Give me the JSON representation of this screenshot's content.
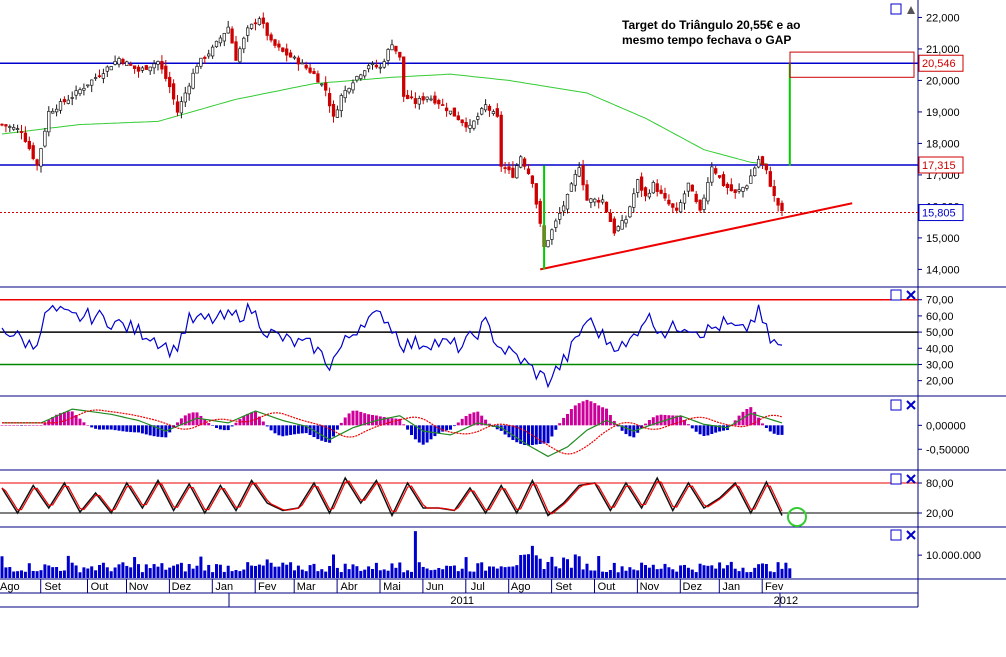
{
  "annotation": {
    "line1": "Target do Triângulo 20,55€ e ao",
    "line2": "mesmo tempo fechava o GAP"
  },
  "colors": {
    "price_up": "#1a1a1a",
    "price_down": "#cc0000",
    "sma": "#33cc33",
    "level_lines": "#0000cc",
    "trendline": "#ee0000",
    "target_line": "#00cc00",
    "rsi": "#0000cc",
    "volume": "#0000cc"
  },
  "chart_data": [
    {
      "type": "line",
      "panel": "price",
      "ylim": [
        13600,
        22300
      ],
      "yticks": [
        "22,000",
        "21,000",
        "20,000",
        "19,000",
        "18,000",
        "17,000",
        "16,000",
        "15,000",
        "14,000"
      ],
      "ytick_values": [
        22000,
        21000,
        20000,
        19000,
        18000,
        17000,
        16000,
        15000,
        14000
      ],
      "price_tags": [
        {
          "label": "20,546",
          "value": 20546
        },
        {
          "label": "17,315",
          "value": 17315
        },
        {
          "label": "15,805",
          "value": 15805
        }
      ],
      "anchors": [
        [
          0,
          18600
        ],
        [
          5,
          18400
        ],
        [
          9,
          17300
        ],
        [
          12,
          19000
        ],
        [
          18,
          19500
        ],
        [
          25,
          20200
        ],
        [
          30,
          20700
        ],
        [
          35,
          20300
        ],
        [
          40,
          20600
        ],
        [
          43,
          19800
        ],
        [
          45,
          19000
        ],
        [
          47,
          19600
        ],
        [
          50,
          20500
        ],
        [
          54,
          21000
        ],
        [
          58,
          21700
        ],
        [
          60,
          20700
        ],
        [
          63,
          21600
        ],
        [
          66,
          22000
        ],
        [
          69,
          21200
        ],
        [
          72,
          20900
        ],
        [
          76,
          20600
        ],
        [
          80,
          20200
        ],
        [
          83,
          19700
        ],
        [
          85,
          18800
        ],
        [
          87,
          19500
        ],
        [
          90,
          20000
        ],
        [
          94,
          20500
        ],
        [
          97,
          20400
        ],
        [
          100,
          21200
        ],
        [
          102,
          20700
        ],
        [
          103,
          19500
        ],
        [
          106,
          19300
        ],
        [
          109,
          19500
        ],
        [
          112,
          19300
        ],
        [
          116,
          18900
        ],
        [
          120,
          18500
        ],
        [
          124,
          19200
        ],
        [
          127,
          18800
        ],
        [
          128,
          17300
        ],
        [
          131,
          17000
        ],
        [
          133,
          17600
        ],
        [
          136,
          16800
        ],
        [
          139,
          14700
        ],
        [
          142,
          15500
        ],
        [
          145,
          16300
        ],
        [
          148,
          17300
        ],
        [
          150,
          16200
        ],
        [
          154,
          16200
        ],
        [
          157,
          15200
        ],
        [
          160,
          15600
        ],
        [
          163,
          16800
        ],
        [
          165,
          16300
        ],
        [
          167,
          16700
        ],
        [
          170,
          16200
        ],
        [
          173,
          15800
        ],
        [
          176,
          16700
        ],
        [
          179,
          15800
        ],
        [
          182,
          17300
        ],
        [
          185,
          16700
        ],
        [
          188,
          16400
        ],
        [
          191,
          16700
        ],
        [
          194,
          17500
        ],
        [
          196,
          17100
        ],
        [
          198,
          16300
        ],
        [
          200,
          15800
        ]
      ],
      "sma_anchors": [
        [
          0,
          18300
        ],
        [
          20,
          18600
        ],
        [
          40,
          18700
        ],
        [
          60,
          19400
        ],
        [
          80,
          19900
        ],
        [
          100,
          20100
        ],
        [
          115,
          20200
        ],
        [
          130,
          20000
        ],
        [
          150,
          19600
        ],
        [
          165,
          18800
        ],
        [
          180,
          17800
        ],
        [
          192,
          17400
        ],
        [
          196,
          17350
        ]
      ],
      "trendline": {
        "start": [
          138,
          14000
        ],
        "end": [
          218,
          16100
        ]
      },
      "gap_measure": {
        "index": 139,
        "from": 14000,
        "to": 17300
      },
      "target_measure": {
        "index": 202,
        "from": 17300,
        "to": 20550
      },
      "support_level": 15805
    },
    {
      "type": "line",
      "panel": "rsi",
      "ylim": [
        13,
        76
      ],
      "yticks": [
        "70,00",
        "60,00",
        "50,00",
        "40,00",
        "30,00",
        "20,00"
      ],
      "ytick_values": [
        70,
        60,
        50,
        40,
        30,
        20
      ],
      "levels": [
        70,
        50,
        30
      ],
      "anchors": [
        [
          0,
          53
        ],
        [
          8,
          41
        ],
        [
          12,
          64
        ],
        [
          18,
          59
        ],
        [
          24,
          60
        ],
        [
          30,
          55
        ],
        [
          38,
          48
        ],
        [
          44,
          38
        ],
        [
          48,
          57
        ],
        [
          55,
          58
        ],
        [
          60,
          60
        ],
        [
          64,
          64
        ],
        [
          68,
          50
        ],
        [
          74,
          44
        ],
        [
          80,
          41
        ],
        [
          84,
          30
        ],
        [
          88,
          44
        ],
        [
          93,
          58
        ],
        [
          98,
          60
        ],
        [
          103,
          42
        ],
        [
          110,
          44
        ],
        [
          118,
          41
        ],
        [
          124,
          55
        ],
        [
          128,
          40
        ],
        [
          132,
          35
        ],
        [
          137,
          25
        ],
        [
          140,
          20
        ],
        [
          145,
          35
        ],
        [
          150,
          58
        ],
        [
          155,
          45
        ],
        [
          160,
          40
        ],
        [
          165,
          60
        ],
        [
          170,
          50
        ],
        [
          175,
          55
        ],
        [
          180,
          50
        ],
        [
          185,
          55
        ],
        [
          190,
          50
        ],
        [
          194,
          62
        ],
        [
          197,
          45
        ],
        [
          200,
          40
        ]
      ]
    },
    {
      "type": "line",
      "panel": "macd",
      "ylim": [
        -0.85,
        0.55
      ],
      "yticks": [
        "0,00000",
        "-0,50000"
      ],
      "ytick_values": [
        0,
        -0.5
      ],
      "anchors": [
        [
          0,
          0.05
        ],
        [
          10,
          0.05
        ],
        [
          18,
          0.34
        ],
        [
          28,
          0.23
        ],
        [
          35,
          0.1
        ],
        [
          42,
          -0.12
        ],
        [
          50,
          0.15
        ],
        [
          58,
          0.05
        ],
        [
          65,
          0.3
        ],
        [
          72,
          0.1
        ],
        [
          78,
          -0.02
        ],
        [
          84,
          -0.3
        ],
        [
          90,
          -0.05
        ],
        [
          96,
          0.1
        ],
        [
          102,
          0.2
        ],
        [
          108,
          -0.12
        ],
        [
          115,
          -0.2
        ],
        [
          122,
          0.05
        ],
        [
          128,
          -0.05
        ],
        [
          135,
          -0.42
        ],
        [
          140,
          -0.65
        ],
        [
          145,
          -0.45
        ],
        [
          150,
          -0.1
        ],
        [
          155,
          0.1
        ],
        [
          162,
          -0.12
        ],
        [
          168,
          0.05
        ],
        [
          174,
          0.2
        ],
        [
          180,
          0.02
        ],
        [
          186,
          -0.05
        ],
        [
          192,
          0.25
        ],
        [
          200,
          0.05
        ]
      ]
    },
    {
      "type": "line",
      "panel": "stochastic",
      "ylim": [
        0,
        100
      ],
      "yticks": [
        "80,00",
        "20,00"
      ],
      "ytick_values": [
        80,
        20
      ],
      "levels": [
        80,
        20
      ],
      "anchors": [
        [
          0,
          70
        ],
        [
          4,
          20
        ],
        [
          8,
          75
        ],
        [
          12,
          30
        ],
        [
          16,
          80
        ],
        [
          20,
          22
        ],
        [
          24,
          60
        ],
        [
          28,
          20
        ],
        [
          32,
          80
        ],
        [
          36,
          30
        ],
        [
          40,
          85
        ],
        [
          44,
          25
        ],
        [
          48,
          78
        ],
        [
          52,
          20
        ],
        [
          56,
          75
        ],
        [
          60,
          25
        ],
        [
          64,
          85
        ],
        [
          68,
          40
        ],
        [
          72,
          25
        ],
        [
          76,
          30
        ],
        [
          80,
          80
        ],
        [
          84,
          20
        ],
        [
          88,
          90
        ],
        [
          92,
          40
        ],
        [
          96,
          85
        ],
        [
          100,
          15
        ],
        [
          104,
          80
        ],
        [
          108,
          30
        ],
        [
          112,
          30
        ],
        [
          116,
          25
        ],
        [
          120,
          70
        ],
        [
          124,
          20
        ],
        [
          128,
          75
        ],
        [
          132,
          20
        ],
        [
          136,
          85
        ],
        [
          140,
          15
        ],
        [
          144,
          40
        ],
        [
          148,
          75
        ],
        [
          152,
          80
        ],
        [
          156,
          25
        ],
        [
          160,
          80
        ],
        [
          164,
          30
        ],
        [
          168,
          90
        ],
        [
          172,
          25
        ],
        [
          176,
          80
        ],
        [
          180,
          30
        ],
        [
          184,
          50
        ],
        [
          188,
          80
        ],
        [
          192,
          20
        ],
        [
          196,
          82
        ],
        [
          200,
          15
        ]
      ]
    },
    {
      "type": "bar",
      "panel": "volume",
      "yticks": [
        "10.000.000"
      ],
      "ytick_values": [
        10000000
      ],
      "ylim": [
        0,
        21000000
      ]
    }
  ],
  "x_axis": {
    "months": [
      {
        "label": "Ago",
        "index": 2
      },
      {
        "label": "Set",
        "index": 13
      },
      {
        "label": "Out",
        "index": 25
      },
      {
        "label": "Nov",
        "index": 35
      },
      {
        "label": "Dez",
        "index": 46
      },
      {
        "label": "Jan",
        "index": 57
      },
      {
        "label": "Fev",
        "index": 68
      },
      {
        "label": "Mar",
        "index": 78
      },
      {
        "label": "Abr",
        "index": 89
      },
      {
        "label": "Mai",
        "index": 100
      },
      {
        "label": "Jun",
        "index": 111
      },
      {
        "label": "Jul",
        "index": 122
      },
      {
        "label": "Ago",
        "index": 133
      },
      {
        "label": "Set",
        "index": 144
      },
      {
        "label": "Out",
        "index": 155
      },
      {
        "label": "Nov",
        "index": 166
      },
      {
        "label": "Dez",
        "index": 177
      },
      {
        "label": "Jan",
        "index": 187
      },
      {
        "label": "Fev",
        "index": 198
      }
    ],
    "years": [
      {
        "label": "2011",
        "index": 118
      },
      {
        "label": "2012",
        "index": 201
      }
    ]
  }
}
